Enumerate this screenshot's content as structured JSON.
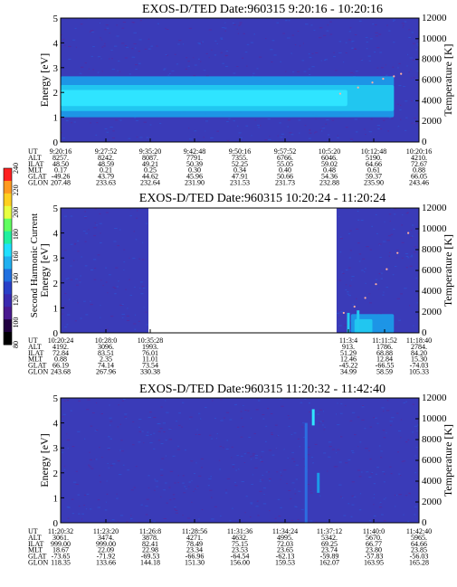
{
  "colorbar": {
    "label": "Second Harmonic Current",
    "ticks": [
      80,
      100,
      120,
      140,
      160,
      180,
      200,
      220,
      240
    ]
  },
  "chart_data": [
    {
      "type": "heatmap",
      "title": "EXOS-D/TED   Date:960315  9:20:16 - 10:20:16",
      "ylabel": "Energy [eV]",
      "y2label": "Temperature [K]",
      "ylim": [
        0,
        5
      ],
      "y2lim": [
        0,
        12000
      ],
      "yticks": [
        0,
        1,
        2,
        3,
        4,
        5
      ],
      "y2ticks": [
        0,
        2000,
        4000,
        6000,
        8000,
        10000,
        12000
      ],
      "background": "#3a3bb8",
      "data_gap": null,
      "bands": [
        {
          "x": [
            0.0,
            0.93
          ],
          "y": [
            1.0,
            2.65
          ],
          "level": "mid",
          "color": "#1b9ae8"
        },
        {
          "x": [
            0.0,
            0.93
          ],
          "y": [
            1.25,
            2.3
          ],
          "level": "high",
          "color": "#22c8f0"
        },
        {
          "x": [
            0.0,
            0.8
          ],
          "y": [
            1.45,
            2.1
          ],
          "level": "peak",
          "color": "#30e6ff"
        }
      ],
      "spikes": [],
      "temperature_trace": [
        [
          0.78,
          1.95
        ],
        [
          0.83,
          2.2
        ],
        [
          0.87,
          2.4
        ],
        [
          0.9,
          2.55
        ],
        [
          0.93,
          2.65
        ],
        [
          0.95,
          2.75
        ]
      ],
      "ephemeris": {
        "rows": [
          "UT",
          "ALT",
          "ILAT",
          "MLT",
          "GLAT",
          "GLON"
        ],
        "columns": [
          [
            "9:20:16",
            "8257.",
            "48.50",
            "0.17",
            "-49.26",
            "207.48"
          ],
          [
            "9:27:52",
            "8242.",
            "48.59",
            "0.21",
            "43.79",
            "233.63"
          ],
          [
            "9:35:20",
            "8087.",
            "49.21",
            "0.25",
            "44.62",
            "232.64"
          ],
          [
            "9:42:48",
            "7791.",
            "50.39",
            "0.30",
            "45.96",
            "231.90"
          ],
          [
            "9:50:16",
            "7355.",
            "52.25",
            "0.34",
            "47.91",
            "231.53"
          ],
          [
            "9:57:52",
            "6766.",
            "55.05",
            "0.40",
            "50.66",
            "231.73"
          ],
          [
            "10:5:20",
            "6046.",
            "59.02",
            "0.48",
            "54.36",
            "232.88"
          ],
          [
            "10:12:48",
            "5190.",
            "64.66",
            "0.61",
            "59.37",
            "235.90"
          ],
          [
            "10:20:16",
            "4210.",
            "72.67",
            "0.88",
            "66.05",
            "243.46"
          ]
        ]
      }
    },
    {
      "type": "heatmap",
      "title": "EXOS-D/TED   Date:960315  10:20:24 - 11:20:24",
      "ylabel": "Energy [eV]",
      "y2label": "Temperature [K]",
      "ylim": [
        0,
        5
      ],
      "y2lim": [
        0,
        12000
      ],
      "yticks": [
        0,
        1,
        2,
        3,
        4,
        5
      ],
      "y2ticks": [
        0,
        2000,
        4000,
        6000,
        8000,
        10000,
        12000
      ],
      "background": "#3a3bb8",
      "data_gap": [
        0.245,
        0.77
      ],
      "bands": [
        {
          "x": [
            0.81,
            0.93
          ],
          "y": [
            0.0,
            0.75
          ],
          "level": "mid",
          "color": "#1b9ae8"
        },
        {
          "x": [
            0.82,
            0.87
          ],
          "y": [
            0.0,
            0.55
          ],
          "level": "high",
          "color": "#22c8f0"
        }
      ],
      "spikes": [
        {
          "x": 0.803,
          "y": [
            0.0,
            0.8
          ],
          "color": "#22c8f0"
        },
        {
          "x": 0.83,
          "y": [
            0.0,
            0.9
          ],
          "color": "#22c8f0"
        }
      ],
      "temperature_trace": [
        [
          0.79,
          0.8
        ],
        [
          0.82,
          1.05
        ],
        [
          0.85,
          1.4
        ],
        [
          0.88,
          1.95
        ],
        [
          0.91,
          2.55
        ],
        [
          0.94,
          3.2
        ],
        [
          0.97,
          4.0
        ]
      ],
      "ephemeris": {
        "rows": [
          "UT",
          "ALT",
          "ILAT",
          "MLT",
          "GLAT",
          "GLON"
        ],
        "columns": [
          [
            "10:20:24",
            "4192.",
            "72.84",
            "0.88",
            "66.19",
            "243.68"
          ],
          [
            "10:28:0",
            "3096.",
            "83.51",
            "2.35",
            "74.14",
            "267.96"
          ],
          [
            "10:35:28",
            "1993.",
            "76.01",
            "11.01",
            "73.54",
            "330.38"
          ],
          [
            "11:3:4",
            "913.",
            "51.29",
            "12.46",
            "-45.22",
            "34.99"
          ],
          [
            "11:11:52",
            "1786.",
            "68.88",
            "12.84",
            "-66.55",
            "58.59"
          ],
          [
            "11:18:40",
            "2784.",
            "84.20",
            "15.30",
            "-74.03",
            "105.33"
          ]
        ]
      }
    },
    {
      "type": "heatmap",
      "title": "EXOS-D/TED   Date:960315  11:20:32 - 11:42:40",
      "ylabel": "Energy [eV]",
      "y2label": "Temperature [K]",
      "ylim": [
        0,
        5
      ],
      "y2lim": [
        0,
        12000
      ],
      "yticks": [
        0,
        1,
        2,
        3,
        4,
        5
      ],
      "y2ticks": [
        0,
        2000,
        4000,
        6000,
        8000,
        10000,
        12000
      ],
      "background": "#3a3bb8",
      "data_gap": null,
      "bands": [],
      "spikes": [
        {
          "x": 0.705,
          "y": [
            3.9,
            4.55
          ],
          "color": "#30e6ff"
        },
        {
          "x": 0.685,
          "y": [
            0.0,
            4.0
          ],
          "color": "#2c6ee0"
        },
        {
          "x": 0.719,
          "y": [
            1.2,
            2.0
          ],
          "color": "#1b9ae8"
        }
      ],
      "temperature_trace": [],
      "ephemeris": {
        "rows": [
          "UT",
          "ALT",
          "ILAT",
          "MLT",
          "GLAT",
          "GLON"
        ],
        "columns": [
          [
            "11:20:32",
            "3061.",
            "999.00",
            "18.67",
            "-73.65",
            "118.35"
          ],
          [
            "11:23:20",
            "3474.",
            "999.00",
            "22.09",
            "-71.92",
            "133.66"
          ],
          [
            "11:26:8",
            "3878.",
            "82.41",
            "22.98",
            "-69.53",
            "144.18"
          ],
          [
            "11:28:56",
            "4271.",
            "78.49",
            "23.34",
            "-66.96",
            "151.30"
          ],
          [
            "11:31:36",
            "4632.",
            "75.15",
            "23.53",
            "-64.54",
            "156.00"
          ],
          [
            "11:34:24",
            "4995.",
            "72.03",
            "23.65",
            "-62.13",
            "159.53"
          ],
          [
            "11:37:12",
            "5342.",
            "69.25",
            "23.74",
            "-59.89",
            "162.07"
          ],
          [
            "11:40:0",
            "5670.",
            "66.77",
            "23.80",
            "-57.83",
            "163.95"
          ],
          [
            "11:42:40",
            "5965.",
            "64.66",
            "23.85",
            "-56.03",
            "165.28"
          ]
        ]
      }
    }
  ]
}
